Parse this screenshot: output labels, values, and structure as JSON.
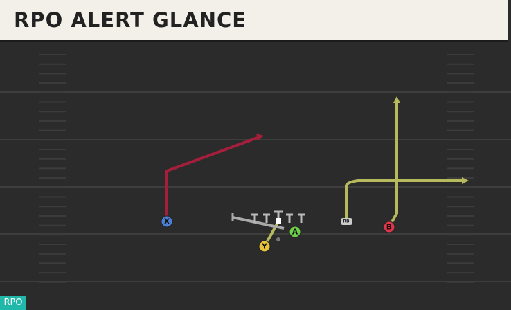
{
  "header": {
    "title": "RPO ALERT GLANCE"
  },
  "players": [
    {
      "label": "X"
    },
    {
      "label": "Y"
    },
    {
      "label": "A"
    },
    {
      "label": "B"
    },
    {
      "label": "RB"
    }
  ],
  "badge": "RPO"
}
